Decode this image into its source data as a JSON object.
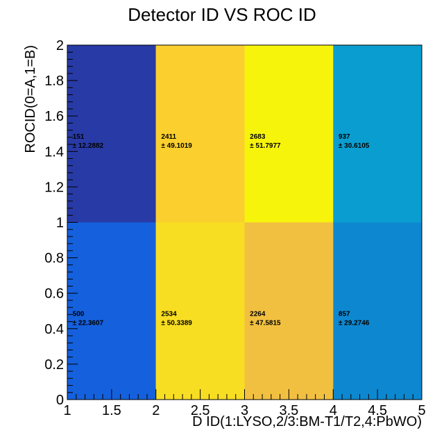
{
  "chart_data": {
    "type": "heatmap",
    "title": "Detector ID VS ROC ID",
    "xlabel": "D ID(1:LYSO,2/3:BM-T1/T2,4:PbWO)",
    "ylabel": "ROCID(0=A,1=B)",
    "xlim": [
      1,
      5
    ],
    "ylim": [
      0,
      2
    ],
    "x_bins": [
      [
        1,
        2
      ],
      [
        2,
        3
      ],
      [
        3,
        4
      ],
      [
        4,
        5
      ]
    ],
    "y_bins": [
      [
        0,
        1
      ],
      [
        1,
        2
      ]
    ],
    "x_ticks": [
      "1",
      "1.5",
      "2",
      "2.5",
      "3",
      "3.5",
      "4",
      "4.5",
      "5"
    ],
    "y_ticks": [
      "0",
      "0.2",
      "0.4",
      "0.6",
      "0.8",
      "1",
      "1.2",
      "1.4",
      "1.6",
      "1.8",
      "2"
    ],
    "cells": [
      {
        "x_bin": 0,
        "y_bin": 0,
        "value": "500",
        "error": "± 22.3607",
        "color": "#1560dc"
      },
      {
        "x_bin": 1,
        "y_bin": 0,
        "value": "2534",
        "error": "± 50.3389",
        "color": "#f8de22"
      },
      {
        "x_bin": 2,
        "y_bin": 0,
        "value": "2264",
        "error": "± 47.5815",
        "color": "#f2c040"
      },
      {
        "x_bin": 3,
        "y_bin": 0,
        "value": "857",
        "error": "± 29.2746",
        "color": "#0d88d0"
      },
      {
        "x_bin": 0,
        "y_bin": 1,
        "value": "151",
        "error": "± 12.2882",
        "color": "#283aa6"
      },
      {
        "x_bin": 1,
        "y_bin": 1,
        "value": "2411",
        "error": "± 49.1019",
        "color": "#fbcf2e"
      },
      {
        "x_bin": 2,
        "y_bin": 1,
        "value": "2683",
        "error": "± 51.7977",
        "color": "#f7f40c"
      },
      {
        "x_bin": 3,
        "y_bin": 1,
        "value": "937",
        "error": "± 30.6105",
        "color": "#0a9ed0"
      }
    ]
  }
}
